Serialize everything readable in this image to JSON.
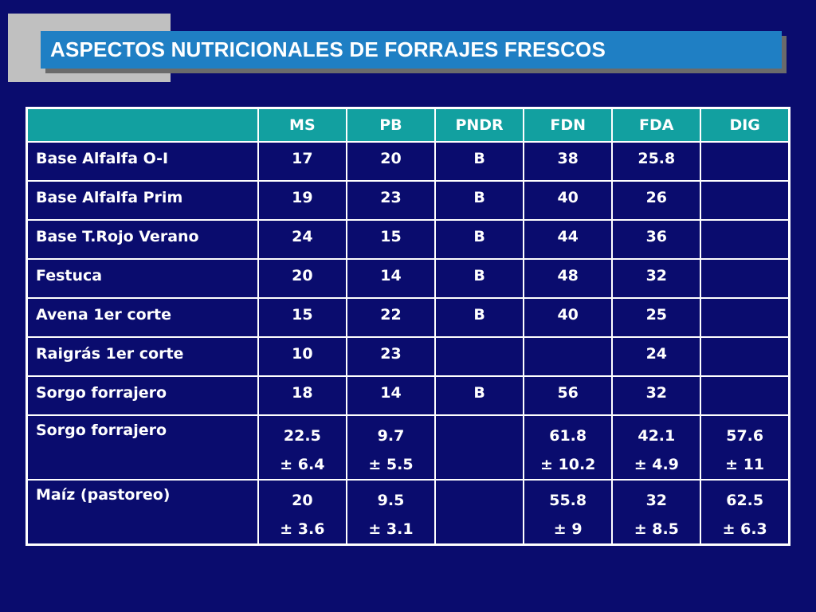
{
  "title": "ASPECTOS NUTRICIONALES DE FORRAJES FRESCOS",
  "colors": {
    "background": "#0a0c6e",
    "title_bar": "#1f7fc4",
    "header_row": "#12a0a0",
    "deco_square": "#c0c0c0"
  },
  "table": {
    "headers": [
      "",
      "MS",
      "PB",
      "PNDR",
      "FDN",
      "FDA",
      "DIG"
    ],
    "rows": [
      {
        "label": "Base Alfalfa O-I",
        "cells": [
          [
            "17"
          ],
          [
            "20"
          ],
          [
            "B"
          ],
          [
            "38"
          ],
          [
            "25.8"
          ],
          []
        ]
      },
      {
        "label": "Base Alfalfa Prim",
        "cells": [
          [
            "19"
          ],
          [
            "23"
          ],
          [
            "B"
          ],
          [
            "40"
          ],
          [
            "26"
          ],
          []
        ]
      },
      {
        "label": "Base T.Rojo Verano",
        "cells": [
          [
            "24"
          ],
          [
            "15"
          ],
          [
            "B"
          ],
          [
            "44"
          ],
          [
            "36"
          ],
          []
        ]
      },
      {
        "label": "Festuca",
        "cells": [
          [
            "20"
          ],
          [
            "14"
          ],
          [
            "B"
          ],
          [
            "48"
          ],
          [
            "32"
          ],
          []
        ]
      },
      {
        "label": "Avena 1er corte",
        "cells": [
          [
            "15"
          ],
          [
            "22"
          ],
          [
            "B"
          ],
          [
            "40"
          ],
          [
            "25"
          ],
          []
        ]
      },
      {
        "label": "Raigrás 1er corte",
        "cells": [
          [
            "10"
          ],
          [
            "23"
          ],
          [],
          [],
          [
            "24"
          ],
          []
        ]
      },
      {
        "label": "Sorgo forrajero",
        "cells": [
          [
            "18"
          ],
          [
            "14"
          ],
          [
            "B"
          ],
          [
            "56"
          ],
          [
            "32"
          ],
          []
        ]
      },
      {
        "label": "Sorgo forrajero",
        "cells": [
          [
            "22.5",
            "± 6.4"
          ],
          [
            "9.7",
            "± 5.5"
          ],
          [],
          [
            "61.8",
            "± 10.2"
          ],
          [
            "42.1",
            "± 4.9"
          ],
          [
            "57.6",
            "± 11"
          ]
        ]
      },
      {
        "label": "Maíz (pastoreo)",
        "cells": [
          [
            "20",
            "± 3.6"
          ],
          [
            "9.5",
            "± 3.1"
          ],
          [],
          [
            "55.8",
            "± 9"
          ],
          [
            "32",
            "± 8.5"
          ],
          [
            "62.5",
            "± 6.3"
          ]
        ]
      }
    ]
  }
}
